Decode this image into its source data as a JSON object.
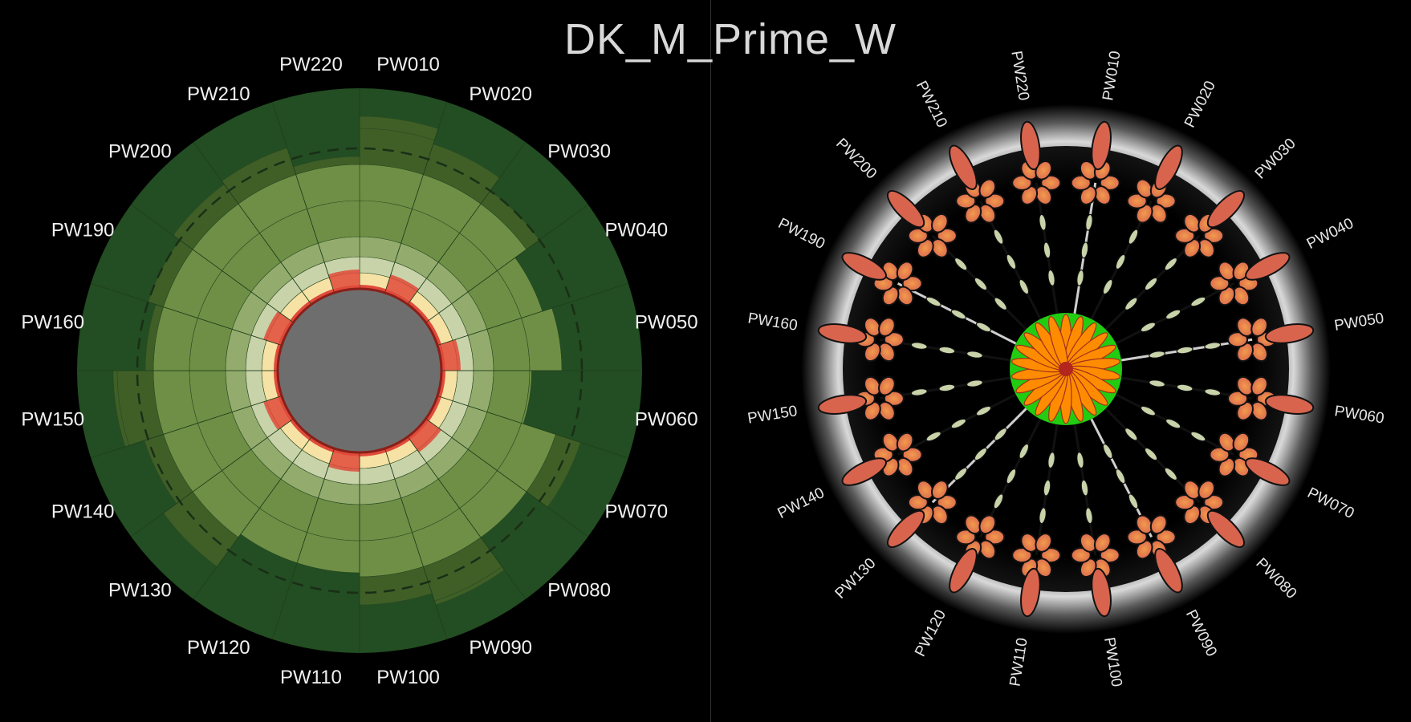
{
  "title": "DK_M_Prime_W",
  "colors": {
    "background": "#000000",
    "outer_ring": "#234d22",
    "band_dark": "#3f5f27",
    "band_mid": "#6f8f46",
    "band_light": "#93ac6d",
    "band_pale": "#c9d3aa",
    "band_cream": "#f6e2a5",
    "hub": "#6e6e6e",
    "red": "#e04a3a",
    "orange_petal": "#ff8c00",
    "leaf_green": "#22cc11"
  },
  "chart_data": [
    {
      "type": "polar-bar",
      "labels": [
        "PW010",
        "PW020",
        "PW030",
        "PW040",
        "PW050",
        "PW060",
        "PW070",
        "PW080",
        "PW090",
        "PW100",
        "PW110",
        "PW120",
        "PW130",
        "PW140",
        "PW150",
        "PW160",
        "PW190",
        "PW200",
        "PW210",
        "PW220"
      ],
      "values": [
        0.86,
        0.78,
        0.7,
        0.55,
        0.6,
        0.45,
        0.75,
        0.62,
        0.82,
        0.76,
        0.6,
        0.6,
        0.8,
        0.72,
        0.82,
        0.66,
        0.7,
        0.74,
        0.76,
        0.66
      ],
      "reference_level": 0.7,
      "grid": false,
      "legend": "none"
    },
    {
      "type": "radial-tree",
      "labels": [
        "PW010",
        "PW020",
        "PW030",
        "PW040",
        "PW050",
        "PW060",
        "PW070",
        "PW080",
        "PW090",
        "PW100",
        "PW110",
        "PW120",
        "PW130",
        "PW140",
        "PW150",
        "PW160",
        "PW190",
        "PW200",
        "PW210",
        "PW220"
      ],
      "hub_petals": 22,
      "legend": "none"
    }
  ]
}
